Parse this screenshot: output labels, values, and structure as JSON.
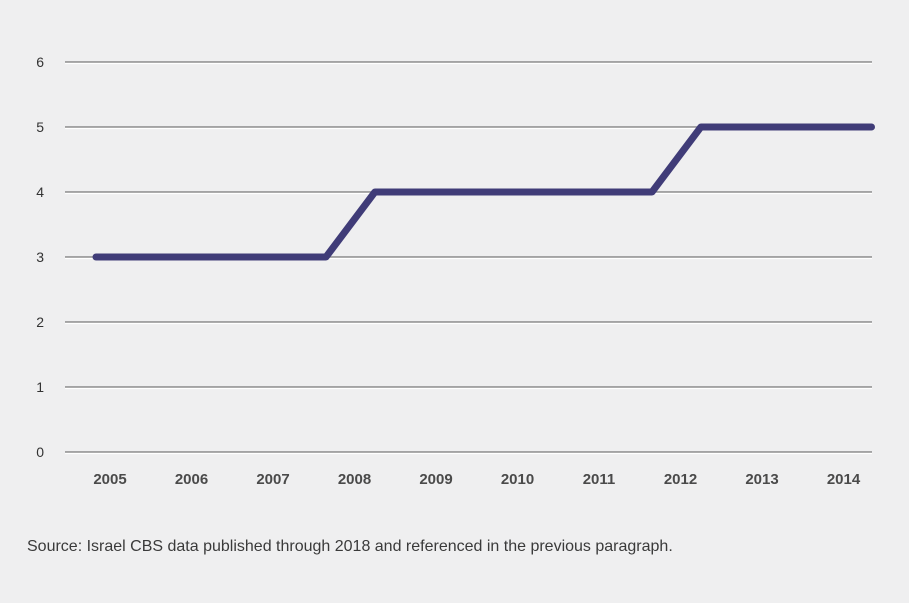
{
  "chart_data": {
    "type": "line",
    "title": "",
    "xlabel": "",
    "ylabel": "",
    "categories": [
      "2005",
      "2006",
      "2007",
      "2008",
      "2009",
      "2010",
      "2011",
      "2012",
      "2013",
      "2014"
    ],
    "series": [
      {
        "values": [
          3,
          3,
          3,
          4,
          4,
          4,
          4,
          5,
          5,
          5
        ],
        "color": "#403c78"
      }
    ],
    "ylim": [
      0,
      6
    ],
    "yticks": [
      "0",
      "1",
      "2",
      "3",
      "4",
      "5",
      "6"
    ],
    "grid": true,
    "legend": "none"
  },
  "source_note": "Source: Israel CBS data published through 2018 and referenced in the previous paragraph.",
  "colors": {
    "background": "#efeff0",
    "line": "#403c78",
    "grid": "#8a8a8a"
  }
}
